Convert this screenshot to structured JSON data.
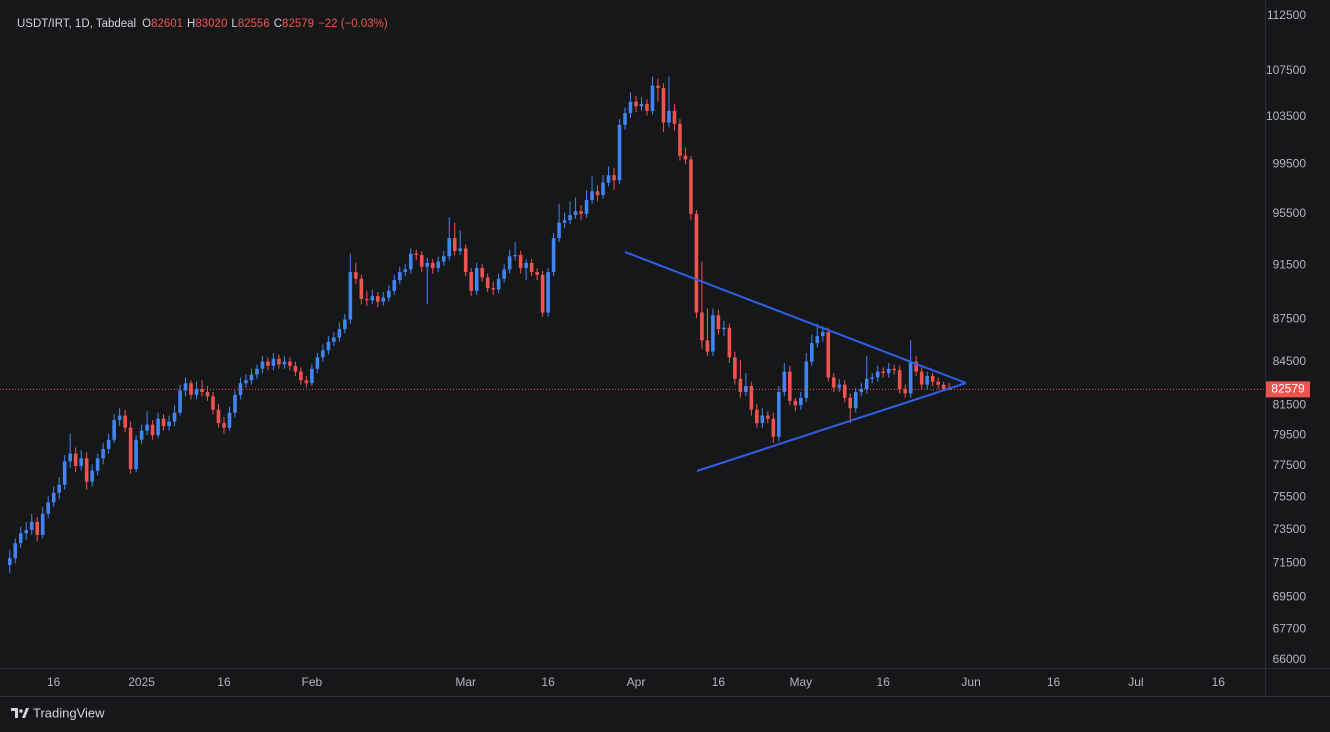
{
  "chart_data": {
    "type": "candlestick",
    "legend": {
      "symbol": "USDT/IRT, 1D, Tabdeal",
      "fields": [
        "O",
        "H",
        "L",
        "C"
      ],
      "change": "−22 (−0.03%)"
    },
    "up_color": "#4184f3",
    "down_color": "#ef5350",
    "log_scale": true,
    "ylim": [
      65560,
      113250
    ],
    "yticks": [
      112500,
      107500,
      103500,
      99500,
      95500,
      91500,
      87500,
      84500,
      81500,
      79500,
      77500,
      75500,
      73500,
      71500,
      69500,
      67700,
      66000
    ],
    "categories": [
      null,
      null,
      null,
      null,
      null,
      null,
      null,
      null,
      "16",
      null,
      null,
      null,
      null,
      null,
      null,
      null,
      null,
      null,
      null,
      null,
      null,
      null,
      null,
      null,
      "2025",
      null,
      null,
      null,
      null,
      null,
      null,
      null,
      null,
      null,
      null,
      null,
      null,
      null,
      null,
      "16",
      null,
      null,
      null,
      null,
      null,
      null,
      null,
      null,
      null,
      null,
      null,
      null,
      null,
      null,
      null,
      "Feb",
      null,
      null,
      null,
      null,
      null,
      null,
      null,
      null,
      null,
      null,
      null,
      null,
      null,
      null,
      null,
      null,
      null,
      null,
      null,
      null,
      null,
      null,
      null,
      null,
      null,
      null,
      null,
      "Mar",
      null,
      null,
      null,
      null,
      null,
      null,
      null,
      null,
      null,
      null,
      null,
      null,
      null,
      null,
      "16",
      null,
      null,
      null,
      null,
      null,
      null,
      null,
      null,
      null,
      null,
      null,
      null,
      null,
      null,
      null,
      "Apr",
      null,
      null,
      null,
      null,
      null,
      null,
      null,
      null,
      null,
      null,
      null,
      null,
      null,
      null,
      "16",
      null,
      null,
      null,
      null,
      null,
      null,
      null,
      null,
      null,
      null,
      null,
      null,
      null,
      null,
      "May",
      null,
      null,
      null,
      null,
      null,
      null,
      null,
      null,
      null,
      null,
      null,
      null,
      null,
      null,
      "16",
      null,
      null,
      null,
      null,
      null,
      null,
      null,
      null,
      null,
      null,
      null,
      null,
      null,
      null,
      null,
      "Jun",
      null,
      null,
      null,
      null,
      null,
      null,
      null,
      null,
      null,
      null,
      null,
      null,
      null,
      null,
      "16",
      null,
      null,
      null,
      null,
      null,
      null,
      null,
      null,
      null,
      null,
      null,
      null,
      null,
      null,
      "Jul",
      null,
      null,
      null,
      null,
      null,
      null,
      null,
      null,
      null,
      null,
      null,
      null,
      null,
      null,
      "16",
      null,
      null,
      null,
      null,
      null,
      null,
      null,
      null
    ],
    "ohlc": [
      [
        71400,
        72300,
        70900,
        71800
      ],
      [
        71800,
        73000,
        71500,
        72700
      ],
      [
        72700,
        73700,
        72400,
        73300
      ],
      [
        73300,
        74000,
        72900,
        73500
      ],
      [
        73500,
        74500,
        73200,
        74000
      ],
      [
        74000,
        74300,
        72800,
        73200
      ],
      [
        73200,
        74900,
        73000,
        74500
      ],
      [
        74500,
        75600,
        74200,
        75200
      ],
      [
        75200,
        76200,
        74900,
        75800
      ],
      [
        75800,
        76800,
        75400,
        76300
      ],
      [
        76300,
        78200,
        76000,
        77800
      ],
      [
        77800,
        79600,
        77400,
        78300
      ],
      [
        78300,
        78700,
        77100,
        77500
      ],
      [
        77500,
        78500,
        77200,
        78000
      ],
      [
        78000,
        78400,
        76000,
        76500
      ],
      [
        76500,
        77600,
        76200,
        77200
      ],
      [
        77200,
        78300,
        76900,
        78000
      ],
      [
        78000,
        79000,
        77600,
        78600
      ],
      [
        78600,
        79600,
        78300,
        79200
      ],
      [
        79200,
        80900,
        79000,
        80500
      ],
      [
        80500,
        81300,
        80100,
        80800
      ],
      [
        80800,
        81200,
        79700,
        80000
      ],
      [
        80000,
        80400,
        77000,
        77300
      ],
      [
        77300,
        79500,
        77100,
        79200
      ],
      [
        79200,
        80200,
        78900,
        79800
      ],
      [
        79800,
        81100,
        79500,
        80200
      ],
      [
        80200,
        80500,
        79200,
        79500
      ],
      [
        79500,
        81000,
        79300,
        80600
      ],
      [
        80600,
        80900,
        79800,
        80100
      ],
      [
        80100,
        80800,
        79800,
        80400
      ],
      [
        80400,
        81500,
        80100,
        81000
      ],
      [
        81000,
        82900,
        80800,
        82500
      ],
      [
        82500,
        83400,
        82100,
        83000
      ],
      [
        83000,
        83200,
        81900,
        82200
      ],
      [
        82200,
        83100,
        81900,
        82600
      ],
      [
        82600,
        83200,
        82100,
        82400
      ],
      [
        82400,
        82800,
        81800,
        82100
      ],
      [
        82100,
        82400,
        80900,
        81200
      ],
      [
        81200,
        81600,
        80000,
        80300
      ],
      [
        80300,
        80700,
        79600,
        80000
      ],
      [
        80000,
        81400,
        79800,
        81000
      ],
      [
        81000,
        82500,
        80700,
        82200
      ],
      [
        82200,
        83400,
        81900,
        83000
      ],
      [
        83000,
        83600,
        82700,
        83200
      ],
      [
        83200,
        84000,
        82900,
        83600
      ],
      [
        83600,
        84300,
        83300,
        84000
      ],
      [
        84000,
        84900,
        83700,
        84500
      ],
      [
        84500,
        84800,
        83900,
        84200
      ],
      [
        84200,
        85100,
        83900,
        84700
      ],
      [
        84700,
        85000,
        84000,
        84300
      ],
      [
        84300,
        84900,
        84000,
        84500
      ],
      [
        84500,
        84800,
        83900,
        84200
      ],
      [
        84200,
        84500,
        83500,
        83800
      ],
      [
        83800,
        84100,
        82900,
        83200
      ],
      [
        83200,
        83500,
        82700,
        83000
      ],
      [
        83000,
        84300,
        82800,
        84000
      ],
      [
        84000,
        85100,
        83700,
        84800
      ],
      [
        84800,
        85700,
        84500,
        85300
      ],
      [
        85300,
        86300,
        85000,
        85900
      ],
      [
        85900,
        86600,
        85600,
        86200
      ],
      [
        86200,
        87300,
        85900,
        86800
      ],
      [
        86800,
        87900,
        86500,
        87500
      ],
      [
        87500,
        92400,
        87200,
        91000
      ],
      [
        91000,
        91700,
        90100,
        90500
      ],
      [
        90500,
        90800,
        88600,
        89000
      ],
      [
        89000,
        89600,
        88500,
        88900
      ],
      [
        88900,
        89700,
        88600,
        89200
      ],
      [
        89200,
        89500,
        88400,
        88800
      ],
      [
        88800,
        89500,
        88500,
        89100
      ],
      [
        89100,
        90000,
        88800,
        89600
      ],
      [
        89600,
        90800,
        89300,
        90400
      ],
      [
        90400,
        91400,
        90100,
        91000
      ],
      [
        91000,
        91600,
        90700,
        91200
      ],
      [
        91200,
        92800,
        90900,
        92400
      ],
      [
        92400,
        92700,
        91900,
        92300
      ],
      [
        92300,
        92600,
        91000,
        91400
      ],
      [
        91400,
        92100,
        88600,
        91700
      ],
      [
        91700,
        92000,
        90900,
        91300
      ],
      [
        91300,
        92200,
        91000,
        91800
      ],
      [
        91800,
        92600,
        91500,
        92200
      ],
      [
        92200,
        95200,
        91900,
        93600
      ],
      [
        93600,
        94800,
        92300,
        92600
      ],
      [
        92600,
        94200,
        92300,
        92800
      ],
      [
        92800,
        93100,
        90700,
        91000
      ],
      [
        91000,
        91300,
        89200,
        89600
      ],
      [
        89600,
        91700,
        89300,
        91300
      ],
      [
        91300,
        91600,
        90300,
        90600
      ],
      [
        90600,
        90900,
        89500,
        89800
      ],
      [
        89800,
        90300,
        89300,
        89700
      ],
      [
        89700,
        90900,
        89400,
        90500
      ],
      [
        90500,
        91600,
        90200,
        91200
      ],
      [
        91200,
        92700,
        90900,
        92200
      ],
      [
        92200,
        93300,
        91900,
        92300
      ],
      [
        92300,
        92600,
        90900,
        91300
      ],
      [
        91300,
        92000,
        90400,
        91700
      ],
      [
        91700,
        92000,
        90700,
        91000
      ],
      [
        91000,
        91300,
        90400,
        90800
      ],
      [
        90800,
        91100,
        87700,
        88000
      ],
      [
        88000,
        91300,
        87700,
        91000
      ],
      [
        91000,
        94000,
        90700,
        93600
      ],
      [
        93600,
        96300,
        93300,
        94800
      ],
      [
        94800,
        95600,
        94400,
        95000
      ],
      [
        95000,
        96500,
        94700,
        95400
      ],
      [
        95400,
        96800,
        95100,
        95700
      ],
      [
        95700,
        96200,
        95000,
        95500
      ],
      [
        95500,
        97400,
        95200,
        96600
      ],
      [
        96600,
        98500,
        96300,
        97300
      ],
      [
        97300,
        97800,
        96500,
        97000
      ],
      [
        97000,
        98600,
        96700,
        98000
      ],
      [
        98000,
        99300,
        97700,
        98600
      ],
      [
        98600,
        99200,
        97400,
        98200
      ],
      [
        98200,
        103300,
        97900,
        102800
      ],
      [
        102800,
        104300,
        102400,
        103800
      ],
      [
        103800,
        105600,
        103400,
        104800
      ],
      [
        104800,
        105300,
        103900,
        104400
      ],
      [
        104400,
        105200,
        104000,
        104600
      ],
      [
        104600,
        105000,
        103600,
        104000
      ],
      [
        104000,
        107000,
        103700,
        106200
      ],
      [
        106200,
        106800,
        104800,
        106000
      ],
      [
        106000,
        106400,
        102200,
        103000
      ],
      [
        103000,
        107000,
        102600,
        104000
      ],
      [
        104000,
        104600,
        102300,
        102900
      ],
      [
        102900,
        103300,
        99800,
        100200
      ],
      [
        100200,
        100900,
        99500,
        99900
      ],
      [
        99900,
        100200,
        95000,
        95500
      ],
      [
        95500,
        95800,
        87600,
        88000
      ],
      [
        88000,
        91800,
        85400,
        86000
      ],
      [
        86000,
        88300,
        84900,
        85200
      ],
      [
        85200,
        88300,
        84900,
        87800
      ],
      [
        87800,
        88200,
        86400,
        86800
      ],
      [
        86800,
        87400,
        86300,
        86900
      ],
      [
        86900,
        87200,
        84400,
        84800
      ],
      [
        84800,
        85200,
        82900,
        83300
      ],
      [
        83300,
        84600,
        82000,
        82400
      ],
      [
        82400,
        83700,
        82100,
        82800
      ],
      [
        82800,
        83100,
        80800,
        81200
      ],
      [
        81200,
        81600,
        80000,
        80300
      ],
      [
        80300,
        81300,
        80000,
        80800
      ],
      [
        80800,
        81100,
        80300,
        80600
      ],
      [
        80600,
        81000,
        79000,
        79400
      ],
      [
        79400,
        82800,
        79100,
        82400
      ],
      [
        82400,
        84400,
        82100,
        83800
      ],
      [
        83800,
        84200,
        81500,
        81800
      ],
      [
        81800,
        82000,
        81100,
        81500
      ],
      [
        81500,
        82400,
        81200,
        82000
      ],
      [
        82000,
        85100,
        81700,
        84500
      ],
      [
        84500,
        86400,
        84200,
        85800
      ],
      [
        85800,
        87200,
        85500,
        86300
      ],
      [
        86300,
        87000,
        85900,
        86600
      ],
      [
        86600,
        86900,
        83100,
        83400
      ],
      [
        83400,
        83700,
        82400,
        82700
      ],
      [
        82700,
        83300,
        82400,
        82900
      ],
      [
        82900,
        83200,
        81700,
        82000
      ],
      [
        82000,
        82300,
        80300,
        81300
      ],
      [
        81300,
        82700,
        81000,
        82400
      ],
      [
        82400,
        83000,
        82100,
        82600
      ],
      [
        82600,
        84900,
        82300,
        83300
      ],
      [
        83300,
        83700,
        83000,
        83400
      ],
      [
        83400,
        84200,
        83100,
        83800
      ],
      [
        83800,
        84100,
        83400,
        83700
      ],
      [
        83700,
        84400,
        83400,
        84000
      ],
      [
        84000,
        84300,
        83600,
        83900
      ],
      [
        83900,
        84200,
        82300,
        82600
      ],
      [
        82600,
        82900,
        82000,
        82300
      ],
      [
        82300,
        86000,
        82000,
        84500
      ],
      [
        84500,
        84900,
        83500,
        83800
      ],
      [
        83800,
        84100,
        82600,
        82900
      ],
      [
        82900,
        83800,
        82600,
        83500
      ],
      [
        83500,
        83700,
        82800,
        83100
      ],
      [
        83100,
        83400,
        82600,
        82900
      ],
      [
        82900,
        83100,
        82500,
        82601
      ],
      [
        82601,
        83020,
        82556,
        82579
      ],
      null,
      null,
      null,
      null,
      null,
      null,
      null,
      null,
      null,
      null,
      null,
      null,
      null,
      null,
      null,
      null,
      null,
      null,
      null,
      null,
      null,
      null,
      null,
      null,
      null,
      null,
      null,
      null,
      null,
      null,
      null,
      null,
      null,
      null,
      null,
      null,
      null,
      null,
      null,
      null,
      null,
      null,
      null,
      null,
      null,
      null,
      null,
      null,
      null,
      null,
      null,
      null,
      null,
      null,
      null,
      null,
      null
    ]
  },
  "footer": {
    "brand": "TradingView"
  }
}
